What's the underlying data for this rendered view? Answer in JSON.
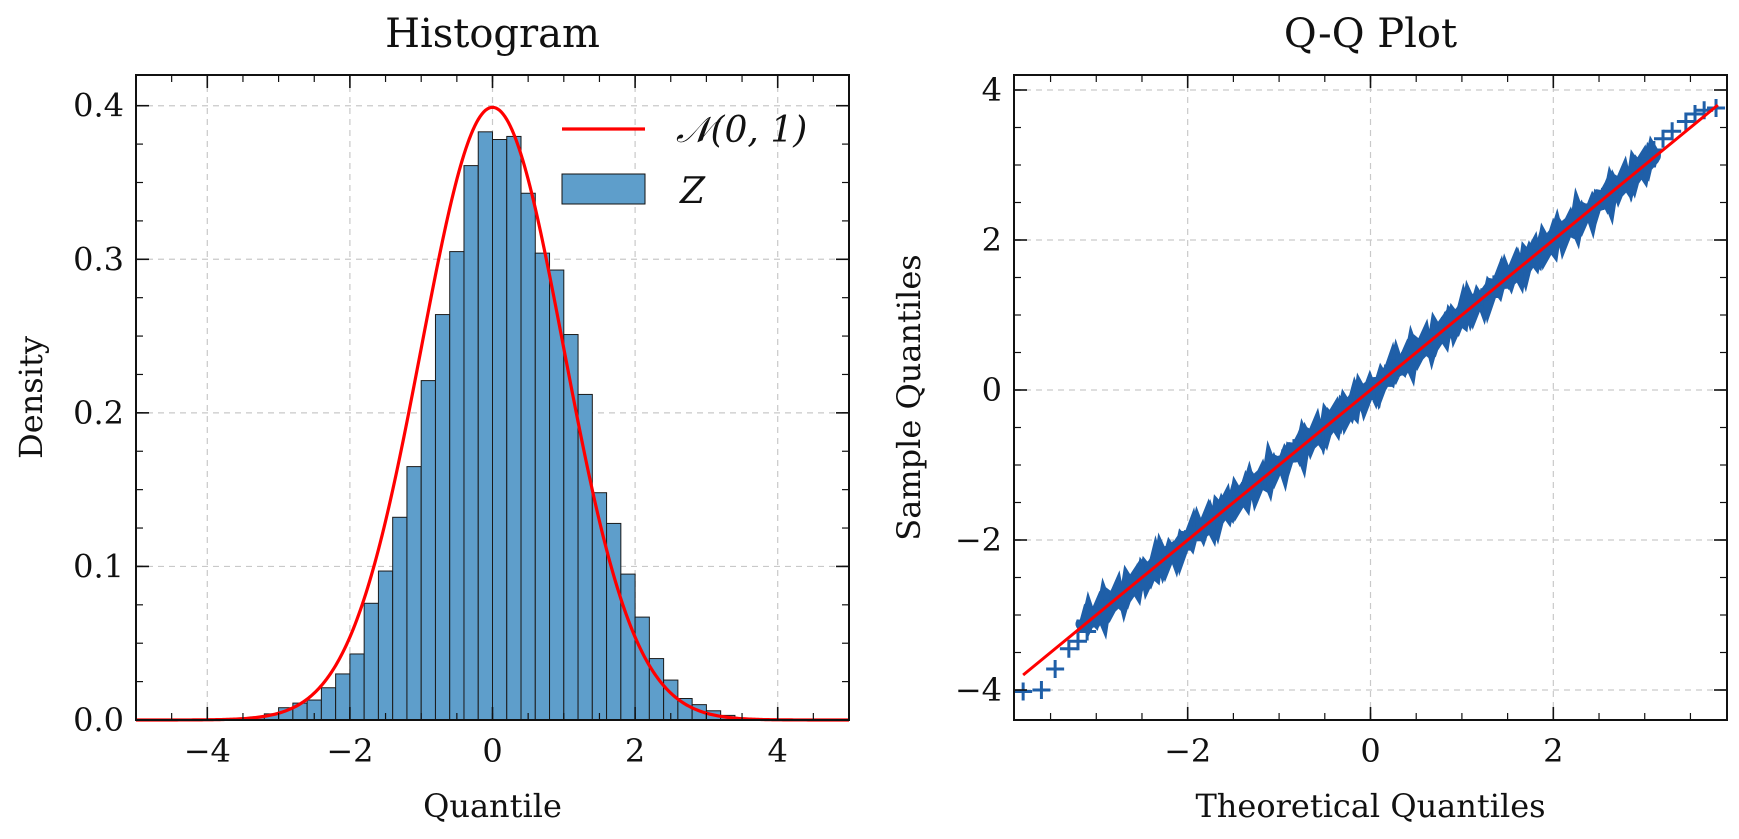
{
  "chart_data": [
    {
      "type": "bar",
      "title": "Histogram",
      "xlabel": "Quantile",
      "ylabel": "Density",
      "xlim": [
        -5,
        5
      ],
      "ylim": [
        0,
        0.42
      ],
      "xticks": [
        -4,
        -2,
        0,
        2,
        4
      ],
      "xtick_labels": [
        "−4",
        "−2",
        "0",
        "2",
        "4"
      ],
      "yticks": [
        0.0,
        0.1,
        0.2,
        0.3,
        0.4
      ],
      "ytick_labels": [
        "0.0",
        "0.1",
        "0.2",
        "0.3",
        "0.4"
      ],
      "grid": true,
      "legend": "top-right",
      "bin_width": 0.2,
      "bins": [
        {
          "x0": -3.6,
          "value": 0.001
        },
        {
          "x0": -3.4,
          "value": 0.002
        },
        {
          "x0": -3.2,
          "value": 0.004
        },
        {
          "x0": -3.0,
          "value": 0.008
        },
        {
          "x0": -2.8,
          "value": 0.011
        },
        {
          "x0": -2.6,
          "value": 0.013
        },
        {
          "x0": -2.4,
          "value": 0.021
        },
        {
          "x0": -2.2,
          "value": 0.03
        },
        {
          "x0": -2.0,
          "value": 0.043
        },
        {
          "x0": -1.8,
          "value": 0.076
        },
        {
          "x0": -1.6,
          "value": 0.097
        },
        {
          "x0": -1.4,
          "value": 0.132
        },
        {
          "x0": -1.2,
          "value": 0.165
        },
        {
          "x0": -1.0,
          "value": 0.221
        },
        {
          "x0": -0.8,
          "value": 0.264
        },
        {
          "x0": -0.6,
          "value": 0.305
        },
        {
          "x0": -0.4,
          "value": 0.361
        },
        {
          "x0": -0.2,
          "value": 0.383
        },
        {
          "x0": 0.0,
          "value": 0.378
        },
        {
          "x0": 0.2,
          "value": 0.38
        },
        {
          "x0": 0.4,
          "value": 0.343
        },
        {
          "x0": 0.6,
          "value": 0.304
        },
        {
          "x0": 0.8,
          "value": 0.293
        },
        {
          "x0": 1.0,
          "value": 0.251
        },
        {
          "x0": 1.2,
          "value": 0.212
        },
        {
          "x0": 1.4,
          "value": 0.148
        },
        {
          "x0": 1.6,
          "value": 0.128
        },
        {
          "x0": 1.8,
          "value": 0.095
        },
        {
          "x0": 2.0,
          "value": 0.067
        },
        {
          "x0": 2.2,
          "value": 0.04
        },
        {
          "x0": 2.4,
          "value": 0.026
        },
        {
          "x0": 2.6,
          "value": 0.014
        },
        {
          "x0": 2.8,
          "value": 0.01
        },
        {
          "x0": 3.0,
          "value": 0.006
        },
        {
          "x0": 3.2,
          "value": 0.003
        },
        {
          "x0": 3.4,
          "value": 0.001
        }
      ],
      "series": [
        {
          "name": "𝒩(0, 1)",
          "type": "line",
          "color": "#ff0000",
          "function": "standard-normal-pdf"
        },
        {
          "name": "Z",
          "type": "bar",
          "color": "#5e9ecb"
        }
      ]
    },
    {
      "type": "scatter",
      "title": "Q-Q Plot",
      "xlabel": "Theoretical Quantiles",
      "ylabel": "Sample Quantiles",
      "xlim": [
        -3.9,
        3.9
      ],
      "ylim": [
        -4.4,
        4.2
      ],
      "xticks": [
        -2,
        0,
        2
      ],
      "xtick_labels": [
        "−2",
        "0",
        "2"
      ],
      "yticks": [
        -4,
        -2,
        0,
        2,
        4
      ],
      "ytick_labels": [
        "−4",
        "−2",
        "0",
        "2",
        "4"
      ],
      "grid": true,
      "reference_line": {
        "x": [
          -3.8,
          3.8
        ],
        "y": [
          -3.8,
          3.8
        ],
        "color": "#ff0000"
      },
      "marker": "+",
      "marker_color": "#1f5fa8",
      "tail_points": [
        {
          "x": -3.8,
          "y": -4.02
        },
        {
          "x": -3.6,
          "y": -4.0
        },
        {
          "x": -3.45,
          "y": -3.72
        },
        {
          "x": -3.3,
          "y": -3.45
        },
        {
          "x": -3.2,
          "y": -3.35
        },
        {
          "x": -3.1,
          "y": -3.22
        },
        {
          "x": 3.1,
          "y": 3.2
        },
        {
          "x": 3.2,
          "y": 3.35
        },
        {
          "x": 3.3,
          "y": 3.45
        },
        {
          "x": 3.45,
          "y": 3.58
        },
        {
          "x": 3.55,
          "y": 3.68
        },
        {
          "x": 3.65,
          "y": 3.73
        },
        {
          "x": 3.78,
          "y": 3.76
        }
      ]
    }
  ]
}
